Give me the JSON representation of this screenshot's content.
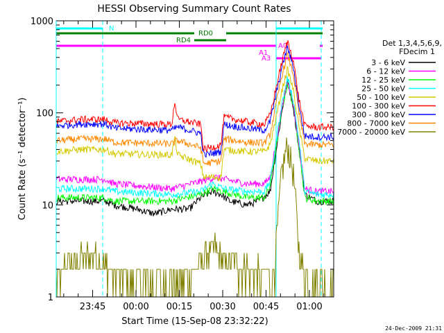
{
  "chart_data": {
    "type": "line",
    "title": "HESSI Observing Summary Count Rates",
    "xlabel": "Start Time (15-Sep-08 23:32:22)",
    "ylabel": "Count Rate (s⁻¹ detector⁻¹)",
    "ylim": [
      1,
      1000
    ],
    "yscale": "log",
    "x_unit": "minutes after 23:32:22",
    "xlim_minutes": [
      0,
      96
    ],
    "x_ticks": [
      {
        "label": "23:45",
        "minute": 12.6
      },
      {
        "label": "00:00",
        "minute": 27.6
      },
      {
        "label": "00:15",
        "minute": 42.6
      },
      {
        "label": "00:30",
        "minute": 57.6
      },
      {
        "label": "00:45",
        "minute": 72.6
      },
      {
        "label": "01:00",
        "minute": 87.6
      }
    ],
    "y_ticks": [
      "1",
      "10",
      "100",
      "1000"
    ],
    "grid": false,
    "legend_position": "right",
    "legend_header": [
      "Det 1,3,4,5,6,9,",
      "FDecim 1"
    ],
    "series": [
      {
        "name": "3 - 6 keV",
        "color": "#000000",
        "points": [
          [
            0,
            11
          ],
          [
            10,
            11
          ],
          [
            17,
            11
          ],
          [
            20,
            10
          ],
          [
            28,
            9
          ],
          [
            34,
            8
          ],
          [
            40,
            9
          ],
          [
            46,
            9
          ],
          [
            50,
            12
          ],
          [
            54,
            14
          ],
          [
            57,
            13
          ],
          [
            60,
            11
          ],
          [
            66,
            10
          ],
          [
            70,
            11
          ],
          [
            74,
            14
          ],
          [
            78,
            100
          ],
          [
            80,
            220
          ],
          [
            82,
            120
          ],
          [
            84,
            40
          ],
          [
            86,
            13
          ],
          [
            90,
            11
          ],
          [
            96,
            11
          ]
        ]
      },
      {
        "name": "6 - 12 keV",
        "color": "#ff00ff",
        "points": [
          [
            0,
            19
          ],
          [
            17,
            19
          ],
          [
            20,
            17
          ],
          [
            40,
            15
          ],
          [
            50,
            18
          ],
          [
            55,
            20
          ],
          [
            58,
            19
          ],
          [
            66,
            17
          ],
          [
            72,
            17
          ],
          [
            74,
            20
          ],
          [
            78,
            110
          ],
          [
            80,
            230
          ],
          [
            82,
            130
          ],
          [
            84,
            45
          ],
          [
            86,
            15
          ],
          [
            90,
            14
          ],
          [
            96,
            14
          ]
        ]
      },
      {
        "name": "12 - 25 keV",
        "color": "#00ff00",
        "points": [
          [
            0,
            12
          ],
          [
            17,
            12
          ],
          [
            20,
            11
          ],
          [
            40,
            11
          ],
          [
            50,
            13
          ],
          [
            54,
            15
          ],
          [
            58,
            14
          ],
          [
            66,
            12
          ],
          [
            72,
            12
          ],
          [
            74,
            16
          ],
          [
            78,
            105
          ],
          [
            80,
            210
          ],
          [
            82,
            125
          ],
          [
            84,
            42
          ],
          [
            86,
            12
          ],
          [
            90,
            11
          ],
          [
            96,
            11
          ]
        ]
      },
      {
        "name": "25 - 50 keV",
        "color": "#00ffff",
        "points": [
          [
            0,
            15
          ],
          [
            17,
            15
          ],
          [
            20,
            14
          ],
          [
            40,
            13
          ],
          [
            50,
            14
          ],
          [
            54,
            17
          ],
          [
            58,
            15
          ],
          [
            66,
            14
          ],
          [
            72,
            14
          ],
          [
            74,
            18
          ],
          [
            78,
            120
          ],
          [
            80,
            240
          ],
          [
            82,
            140
          ],
          [
            84,
            50
          ],
          [
            86,
            14
          ],
          [
            90,
            13
          ],
          [
            96,
            13
          ]
        ]
      },
      {
        "name": "50 - 100 keV",
        "color": "#d4c800",
        "points": [
          [
            0,
            38
          ],
          [
            8,
            40
          ],
          [
            17,
            40
          ],
          [
            20,
            36
          ],
          [
            40,
            35
          ],
          [
            41,
            55
          ],
          [
            42,
            35
          ],
          [
            50,
            28
          ],
          [
            51,
            20
          ],
          [
            57,
            20
          ],
          [
            58,
            40
          ],
          [
            66,
            38
          ],
          [
            72,
            38
          ],
          [
            74,
            45
          ],
          [
            78,
            170
          ],
          [
            80,
            300
          ],
          [
            82,
            180
          ],
          [
            84,
            70
          ],
          [
            86,
            32
          ],
          [
            90,
            30
          ],
          [
            96,
            30
          ]
        ]
      },
      {
        "name": "100 - 300 keV",
        "color": "#ff0000",
        "points": [
          [
            0,
            80
          ],
          [
            8,
            85
          ],
          [
            17,
            85
          ],
          [
            20,
            78
          ],
          [
            40,
            75
          ],
          [
            41,
            135
          ],
          [
            42,
            85
          ],
          [
            50,
            75
          ],
          [
            51,
            40
          ],
          [
            57,
            45
          ],
          [
            58,
            90
          ],
          [
            66,
            80
          ],
          [
            72,
            75
          ],
          [
            74,
            95
          ],
          [
            78,
            350
          ],
          [
            80,
            600
          ],
          [
            82,
            380
          ],
          [
            84,
            140
          ],
          [
            86,
            72
          ],
          [
            90,
            70
          ],
          [
            96,
            70
          ]
        ]
      },
      {
        "name": "300 - 800 keV",
        "color": "#0000ff",
        "points": [
          [
            0,
            72
          ],
          [
            8,
            76
          ],
          [
            17,
            76
          ],
          [
            20,
            68
          ],
          [
            40,
            65
          ],
          [
            42,
            70
          ],
          [
            50,
            60
          ],
          [
            51,
            35
          ],
          [
            57,
            38
          ],
          [
            58,
            75
          ],
          [
            66,
            68
          ],
          [
            72,
            65
          ],
          [
            74,
            80
          ],
          [
            78,
            300
          ],
          [
            80,
            520
          ],
          [
            82,
            320
          ],
          [
            84,
            120
          ],
          [
            86,
            56
          ],
          [
            90,
            55
          ],
          [
            96,
            55
          ]
        ]
      },
      {
        "name": "800 - 7000 keV",
        "color": "#ff8800",
        "points": [
          [
            0,
            50
          ],
          [
            8,
            52
          ],
          [
            17,
            52
          ],
          [
            20,
            48
          ],
          [
            40,
            46
          ],
          [
            42,
            50
          ],
          [
            50,
            42
          ],
          [
            51,
            28
          ],
          [
            57,
            30
          ],
          [
            58,
            52
          ],
          [
            66,
            48
          ],
          [
            72,
            47
          ],
          [
            74,
            58
          ],
          [
            78,
            250
          ],
          [
            80,
            430
          ],
          [
            82,
            270
          ],
          [
            84,
            100
          ],
          [
            86,
            46
          ],
          [
            90,
            45
          ],
          [
            96,
            45
          ]
        ]
      },
      {
        "name": "7000 - 20000 keV",
        "color": "#808000",
        "points": [
          [
            0,
            1.5
          ],
          [
            5,
            2
          ],
          [
            12,
            2.5
          ],
          [
            17,
            2
          ],
          [
            20,
            1.5
          ],
          [
            30,
            1.2
          ],
          [
            46,
            1.5
          ],
          [
            52,
            2.5
          ],
          [
            55,
            3
          ],
          [
            58,
            2
          ],
          [
            66,
            1.8
          ],
          [
            72,
            1.5
          ],
          [
            75,
            1.2
          ],
          [
            78,
            20
          ],
          [
            80,
            40
          ],
          [
            82,
            20
          ],
          [
            84,
            3
          ],
          [
            86,
            1.5
          ],
          [
            90,
            1.2
          ],
          [
            96,
            1.2
          ]
        ]
      }
    ],
    "annotations": {
      "labels": [
        "N",
        "RD0",
        "RD4",
        "A1",
        "A3",
        "A0"
      ],
      "flag_colors": {
        "N": "#00ffff",
        "RD0": "#008000",
        "RD4": "#008000",
        "A": "#ff00ff"
      }
    }
  },
  "footer_date": "24-Dec-2009 21:31"
}
